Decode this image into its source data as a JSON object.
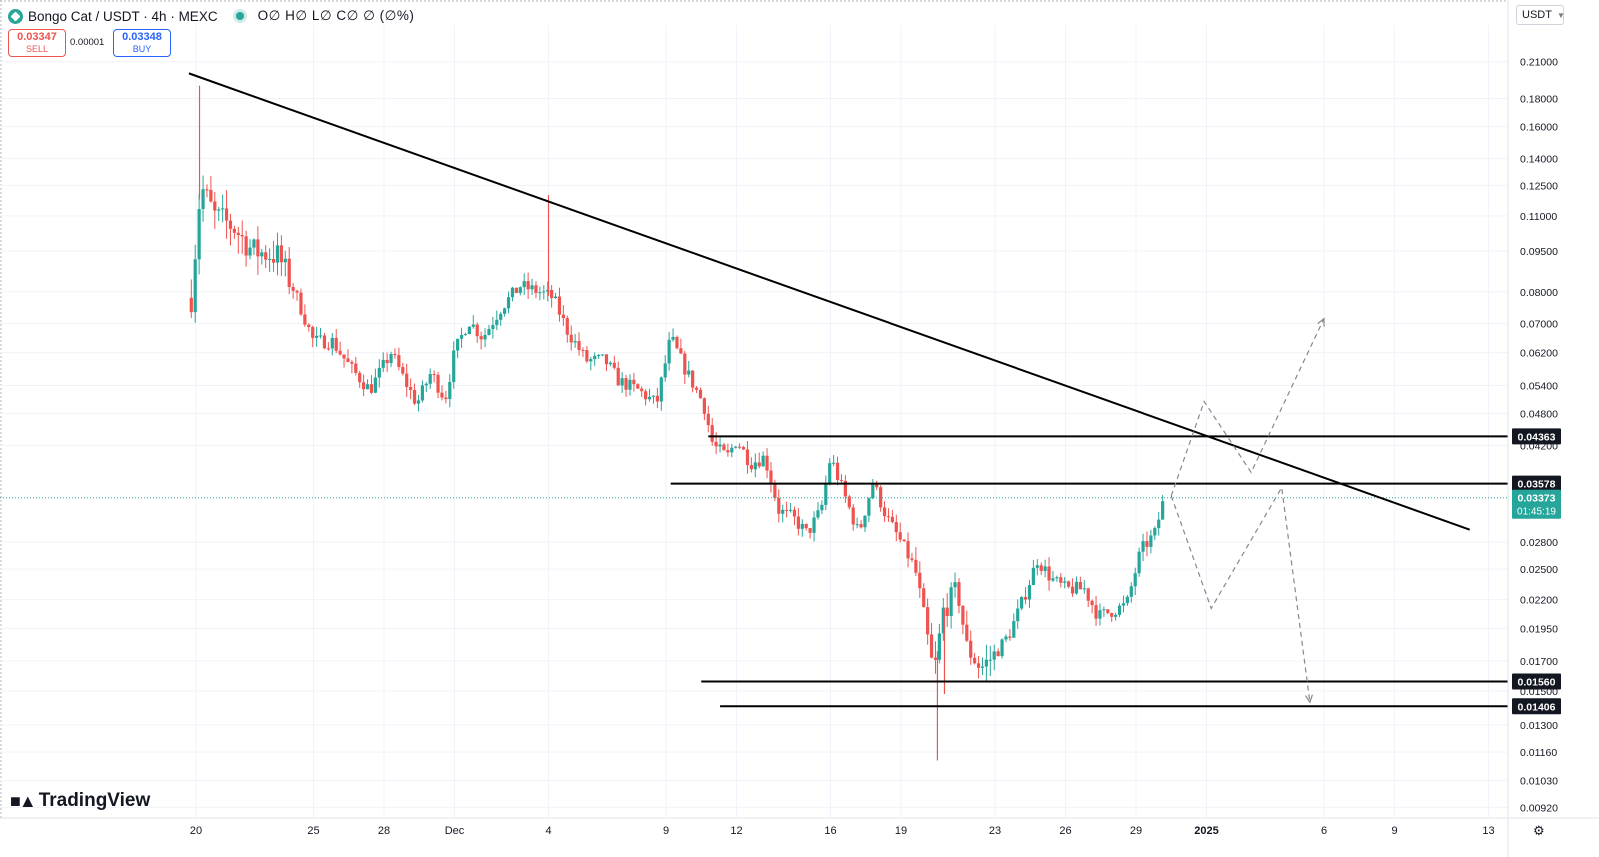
{
  "header": {
    "symbol": "Bongo Cat / USDT · 4h · MEXC",
    "ohlc": "O∅ H∅ L∅ C∅ ∅ (∅%)",
    "sell_price": "0.03347",
    "sell_label": "SELL",
    "spread": "0.00001",
    "buy_price": "0.03348",
    "buy_label": "BUY",
    "currency": "USDT",
    "watermark": "TradingView"
  },
  "colors": {
    "up": "#26a69a",
    "down": "#ef5350",
    "line": "#000000",
    "projection": "#888888",
    "grid": "#f0f3fa"
  },
  "chart_data": {
    "type": "candlestick",
    "y_scale": "log",
    "ylim": [
      0.0088,
      0.245
    ],
    "y_ticks": [
      "0.21000",
      "0.18000",
      "0.16000",
      "0.14000",
      "0.12500",
      "0.11000",
      "0.09500",
      "0.08000",
      "0.07000",
      "0.06200",
      "0.05400",
      "0.04800",
      "0.04200",
      "0.02800",
      "0.02500",
      "0.02200",
      "0.01950",
      "0.01700",
      "0.01500",
      "0.01300",
      "0.01160",
      "0.01030",
      "0.00920"
    ],
    "x_ticks": [
      {
        "label": "20",
        "day": 20
      },
      {
        "label": "25",
        "day": 25
      },
      {
        "label": "28",
        "day": 28
      },
      {
        "label": "Dec",
        "day": 31
      },
      {
        "label": "4",
        "day": 35
      },
      {
        "label": "9",
        "day": 40
      },
      {
        "label": "12",
        "day": 43
      },
      {
        "label": "16",
        "day": 47
      },
      {
        "label": "19",
        "day": 50
      },
      {
        "label": "23",
        "day": 54
      },
      {
        "label": "26",
        "day": 57
      },
      {
        "label": "29",
        "day": 60
      },
      {
        "label": "2025",
        "day": 63
      },
      {
        "label": "6",
        "day": 68
      },
      {
        "label": "9",
        "day": 71
      },
      {
        "label": "13",
        "day": 75
      }
    ],
    "candle_anchors": [
      {
        "day": 19.8,
        "price": 0.078
      },
      {
        "day": 20.2,
        "price": 0.125
      },
      {
        "day": 20.8,
        "price": 0.11
      },
      {
        "day": 21.6,
        "price": 0.105
      },
      {
        "day": 22.4,
        "price": 0.095
      },
      {
        "day": 23.5,
        "price": 0.093
      },
      {
        "day": 24.2,
        "price": 0.08
      },
      {
        "day": 25.0,
        "price": 0.065
      },
      {
        "day": 25.8,
        "price": 0.065
      },
      {
        "day": 26.6,
        "price": 0.058
      },
      {
        "day": 27.4,
        "price": 0.053
      },
      {
        "day": 28.3,
        "price": 0.062
      },
      {
        "day": 28.8,
        "price": 0.056
      },
      {
        "day": 29.4,
        "price": 0.05
      },
      {
        "day": 30.0,
        "price": 0.057
      },
      {
        "day": 30.6,
        "price": 0.051
      },
      {
        "day": 31.0,
        "price": 0.062
      },
      {
        "day": 31.6,
        "price": 0.071
      },
      {
        "day": 32.2,
        "price": 0.066
      },
      {
        "day": 33.0,
        "price": 0.075
      },
      {
        "day": 33.8,
        "price": 0.082
      },
      {
        "day": 34.6,
        "price": 0.08
      },
      {
        "day": 35.2,
        "price": 0.078
      },
      {
        "day": 35.8,
        "price": 0.068
      },
      {
        "day": 36.6,
        "price": 0.06
      },
      {
        "day": 37.4,
        "price": 0.06
      },
      {
        "day": 38.0,
        "price": 0.055
      },
      {
        "day": 38.8,
        "price": 0.053
      },
      {
        "day": 39.6,
        "price": 0.05
      },
      {
        "day": 40.2,
        "price": 0.066
      },
      {
        "day": 40.8,
        "price": 0.058
      },
      {
        "day": 41.6,
        "price": 0.05
      },
      {
        "day": 42.0,
        "price": 0.042
      },
      {
        "day": 42.6,
        "price": 0.04
      },
      {
        "day": 43.0,
        "price": 0.043
      },
      {
        "day": 43.6,
        "price": 0.039
      },
      {
        "day": 44.2,
        "price": 0.04
      },
      {
        "day": 44.8,
        "price": 0.032
      },
      {
        "day": 45.4,
        "price": 0.031
      },
      {
        "day": 46.0,
        "price": 0.029
      },
      {
        "day": 46.6,
        "price": 0.032
      },
      {
        "day": 47.0,
        "price": 0.04
      },
      {
        "day": 47.6,
        "price": 0.034
      },
      {
        "day": 48.2,
        "price": 0.029
      },
      {
        "day": 48.8,
        "price": 0.036
      },
      {
        "day": 49.4,
        "price": 0.031
      },
      {
        "day": 50.0,
        "price": 0.028
      },
      {
        "day": 50.6,
        "price": 0.025
      },
      {
        "day": 51.0,
        "price": 0.02
      },
      {
        "day": 51.4,
        "price": 0.016
      },
      {
        "day": 51.8,
        "price": 0.021
      },
      {
        "day": 52.4,
        "price": 0.023
      },
      {
        "day": 52.8,
        "price": 0.018
      },
      {
        "day": 53.4,
        "price": 0.0165
      },
      {
        "day": 54.0,
        "price": 0.0175
      },
      {
        "day": 54.6,
        "price": 0.019
      },
      {
        "day": 55.2,
        "price": 0.022
      },
      {
        "day": 55.8,
        "price": 0.026
      },
      {
        "day": 56.4,
        "price": 0.024
      },
      {
        "day": 57.0,
        "price": 0.023
      },
      {
        "day": 57.8,
        "price": 0.023
      },
      {
        "day": 58.4,
        "price": 0.0205
      },
      {
        "day": 59.0,
        "price": 0.021
      },
      {
        "day": 59.6,
        "price": 0.0215
      },
      {
        "day": 60.2,
        "price": 0.027
      },
      {
        "day": 60.8,
        "price": 0.029
      },
      {
        "day": 61.2,
        "price": 0.0337
      }
    ],
    "spike_wicks": [
      {
        "day": 20.15,
        "high": 0.19
      },
      {
        "day": 35.0,
        "high": 0.12
      },
      {
        "day": 51.55,
        "low": 0.0112
      },
      {
        "day": 51.85,
        "low": 0.0148
      }
    ],
    "trendline": [
      {
        "day": 19.7,
        "price": 0.2
      },
      {
        "day": 74.2,
        "price": 0.0295
      }
    ],
    "horizontal_levels": [
      {
        "price": 0.04363,
        "label": "0.04363",
        "from_day": 41.8
      },
      {
        "price": 0.03578,
        "label": "0.03578",
        "from_day": 40.2
      },
      {
        "price": 0.0156,
        "label": "0.01560",
        "from_day": 41.5
      },
      {
        "price": 0.01406,
        "label": "0.01406",
        "from_day": 42.3
      }
    ],
    "current_price": {
      "price": 0.03373,
      "label": "0.03373",
      "countdown": "01:45:19"
    },
    "projection_path_1": [
      {
        "day": 61.5,
        "price": 0.034
      },
      {
        "day": 62.9,
        "price": 0.0505
      },
      {
        "day": 64.9,
        "price": 0.0375
      },
      {
        "day": 68.0,
        "price": 0.0715
      }
    ],
    "projection_path_2": [
      {
        "day": 61.5,
        "price": 0.034
      },
      {
        "day": 63.2,
        "price": 0.0212
      },
      {
        "day": 66.2,
        "price": 0.0352
      },
      {
        "day": 67.4,
        "price": 0.0143
      }
    ]
  }
}
